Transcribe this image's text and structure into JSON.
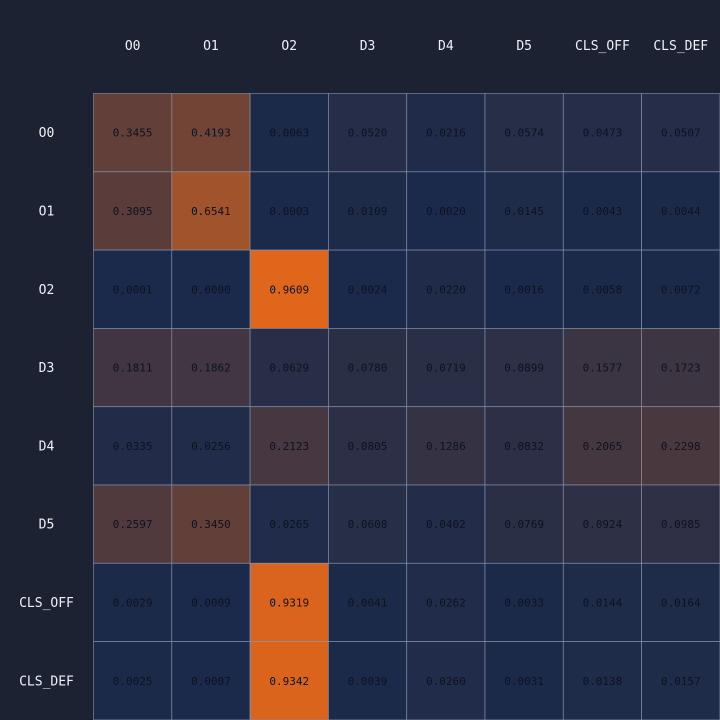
{
  "chart_data": {
    "type": "heatmap",
    "title": "",
    "xlabel": "",
    "ylabel": "",
    "columns": [
      "O0",
      "O1",
      "O2",
      "D3",
      "D4",
      "D5",
      "CLS_OFF",
      "CLS_DEF"
    ],
    "rows": [
      "O0",
      "O1",
      "O2",
      "D3",
      "D4",
      "D5",
      "CLS_OFF",
      "CLS_DEF"
    ],
    "values": [
      [
        0.3455,
        0.4193,
        0.0063,
        0.052,
        0.0216,
        0.0574,
        0.0473,
        0.0507
      ],
      [
        0.3095,
        0.6541,
        0.0003,
        0.0109,
        0.002,
        0.0145,
        0.0043,
        0.0044
      ],
      [
        0.0001,
        0.0,
        0.9609,
        0.0024,
        0.022,
        0.0016,
        0.0058,
        0.0072
      ],
      [
        0.1811,
        0.1862,
        0.0629,
        0.078,
        0.0719,
        0.0899,
        0.1577,
        0.1723
      ],
      [
        0.0335,
        0.0256,
        0.2123,
        0.0805,
        0.1286,
        0.0832,
        0.2065,
        0.2298
      ],
      [
        0.2597,
        0.345,
        0.0265,
        0.0608,
        0.0402,
        0.0769,
        0.0924,
        0.0985
      ],
      [
        0.0029,
        0.0009,
        0.9319,
        0.0041,
        0.0262,
        0.0033,
        0.0144,
        0.0164
      ],
      [
        0.0025,
        0.0007,
        0.9342,
        0.0039,
        0.026,
        0.0031,
        0.0138,
        0.0157
      ]
    ],
    "value_range": [
      0,
      1
    ],
    "colors": {
      "low": "#1b2a4a",
      "high": "#e8681a",
      "background": "#1d2233",
      "grid_line": "#8a97b0",
      "label": "#eef1f8",
      "cell_text": "#0d1220",
      "cell_text_high": "#ffffff"
    }
  }
}
